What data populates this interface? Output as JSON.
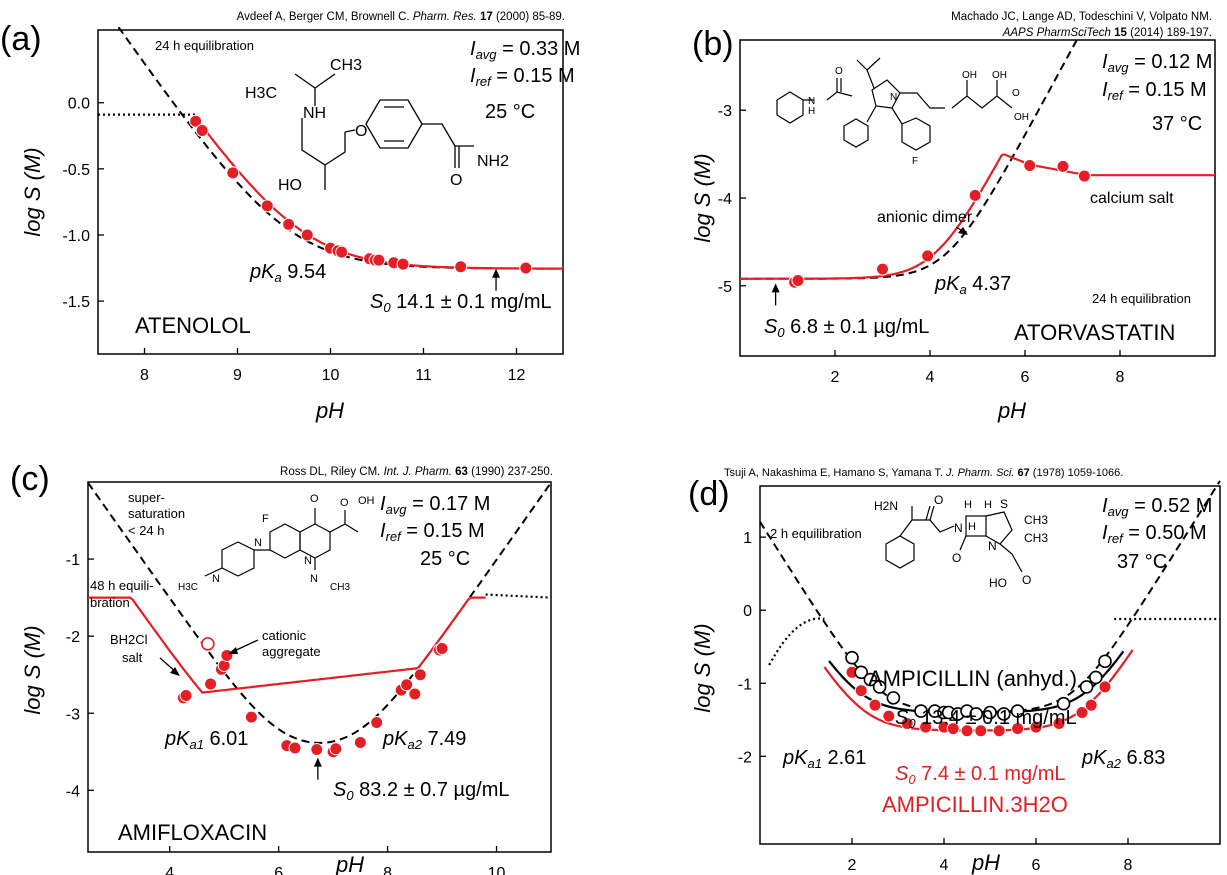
{
  "colors": {
    "model": "#e31e24",
    "accent": "#000000",
    "open_marker": "#ffffff"
  },
  "chart_data": [
    {
      "type": "scatter",
      "panel_label": "(a)",
      "reference": {
        "authors": "Avdeef A, Berger CM, Brownell C.",
        "journal": "Pharm. Res.",
        "volume": "17",
        "pages": "(2000) 85-89."
      },
      "compound": "ATENOLOL",
      "xlabel": "pH",
      "ylabel": "log S (M)",
      "xlim": [
        7.5,
        12.5
      ],
      "ylim": [
        -1.9,
        0.55
      ],
      "xticks": [
        8,
        9,
        10,
        11,
        12
      ],
      "yticks": [
        0.0,
        -0.5,
        -1.0,
        -1.5
      ],
      "ytick_labels": [
        "0.0",
        "-0.5",
        "-1.0",
        "-1.5"
      ],
      "annotations": {
        "equilibration": "24 h equilibration",
        "I_avg": "0.33 M",
        "I_ref": "0.15 M",
        "temperature": "25 °C",
        "pKa": "9.54",
        "S0": "14.1 ± 0.1 mg/mL"
      },
      "structure_labels": [
        "H3C",
        "CH3",
        "NH",
        "HO",
        "O",
        "O",
        "NH2"
      ],
      "points": {
        "x": [
          8.55,
          8.62,
          8.95,
          9.32,
          9.55,
          9.75,
          10.0,
          10.08,
          10.12,
          10.42,
          10.48,
          10.52,
          10.68,
          10.78,
          11.4,
          12.1
        ],
        "y": [
          -0.14,
          -0.21,
          -0.53,
          -0.78,
          -0.92,
          -1.0,
          -1.1,
          -1.12,
          -1.13,
          -1.18,
          -1.19,
          -1.19,
          -1.21,
          -1.22,
          -1.24,
          -1.25
        ]
      },
      "s0_arrow_x": 11.78
    },
    {
      "type": "scatter",
      "panel_label": "(b)",
      "reference": {
        "authors": "Machado JC, Lange AD, Todeschini V, Volpato NM.",
        "journal": "AAPS PharmSciTech",
        "volume": "15",
        "pages": "(2014) 189-197."
      },
      "compound": "ATORVASTATIN",
      "xlabel": "pH",
      "ylabel": "log S (M)",
      "xlim": [
        0,
        10
      ],
      "ylim": [
        -5.8,
        -2.2
      ],
      "xticks": [
        2,
        4,
        6,
        8
      ],
      "yticks": [
        -3,
        -4,
        -5
      ],
      "ytick_labels": [
        "-3",
        "-4",
        "-5"
      ],
      "annotations": {
        "equilibration": "24 h equilibration",
        "I_avg": "0.12 M",
        "I_ref": "0.15 M",
        "temperature": "37 °C",
        "pKa": "4.37",
        "S0": "6.8 ± 0.1 µg/mL",
        "dimer": "anionic dimer",
        "salt": "calcium salt"
      },
      "structure_labels": [
        "N",
        "H",
        "O",
        "N",
        "OH",
        "OH",
        "O",
        "OH",
        "F"
      ],
      "points": {
        "x": [
          1.15,
          1.22,
          3.0,
          3.95,
          4.95,
          6.1,
          6.8,
          7.25
        ],
        "y": [
          -4.96,
          -4.94,
          -4.81,
          -4.66,
          -3.97,
          -3.63,
          -3.64,
          -3.75
        ]
      },
      "s0_arrow_x": 0.75
    },
    {
      "type": "scatter",
      "panel_label": "(c)",
      "reference": {
        "authors": "Ross DL, Riley CM.",
        "journal": "Int. J. Pharm.",
        "volume": "63",
        "pages": "(1990) 237-250."
      },
      "compound": "AMIFLOXACIN",
      "xlabel": "pH",
      "ylabel": "log S (M)",
      "xlim": [
        2.5,
        11
      ],
      "ylim": [
        -4.8,
        0.0
      ],
      "xticks": [
        4,
        6,
        8,
        10
      ],
      "yticks": [
        -1,
        -2,
        -3,
        -4
      ],
      "ytick_labels": [
        "-1",
        "-2",
        "-3",
        "-4"
      ],
      "annotations": {
        "supersat_1": "super-",
        "supersat_2": "saturation",
        "supersat_3": "< 24 h",
        "equil_1": "48 h equili-",
        "equil_2": "bration",
        "salt_1": "BH2Cl",
        "salt_2": "salt",
        "aggregate_1": "cationic",
        "aggregate_2": "aggregate",
        "I_avg": "0.17 M",
        "I_ref": "0.15 M",
        "temperature": "25 °C",
        "pKa1": "6.01",
        "pKa2": "7.49",
        "S0": "83.2 ± 0.7 µg/mL"
      },
      "structure_labels": [
        "F",
        "O",
        "O",
        "OH",
        "N",
        "N",
        "N",
        "N",
        "H3C",
        "CH3"
      ],
      "points": {
        "x": [
          4.25,
          4.3,
          4.75,
          4.95,
          5.0,
          5.05,
          5.5,
          6.15,
          6.3,
          6.7,
          7.0,
          7.05,
          7.5,
          7.8,
          8.25,
          8.35,
          8.5,
          8.6,
          8.95,
          9.0
        ],
        "y": [
          -2.8,
          -2.77,
          -2.62,
          -2.43,
          -2.38,
          -2.25,
          -3.05,
          -3.42,
          -3.45,
          -3.47,
          -3.5,
          -3.46,
          -3.38,
          -3.12,
          -2.7,
          -2.63,
          -2.75,
          -2.5,
          -2.18,
          -2.16
        ]
      },
      "open_points": {
        "x": [
          4.7
        ],
        "y": [
          -2.1
        ]
      },
      "s0_arrow_x": 6.72
    },
    {
      "type": "scatter",
      "panel_label": "(d)",
      "reference": {
        "authors": "Tsuji A, Nakashima E, Hamano S, Yamana T.",
        "journal": "J. Pharm. Sci.",
        "volume": "67",
        "pages": "(1978) 1059-1066."
      },
      "compound_1": "AMPICILLIN (anhyd.)",
      "compound_2": "AMPICILLIN.3H2O",
      "xlabel": "pH",
      "ylabel": "log S (M)",
      "xlim": [
        0,
        10
      ],
      "ylim": [
        -3.2,
        1.7
      ],
      "xticks": [
        2,
        4,
        6,
        8
      ],
      "yticks": [
        1,
        0,
        -1,
        -2
      ],
      "ytick_labels": [
        "1",
        "0",
        "-1",
        "-2"
      ],
      "annotations": {
        "equilibration": "2 h equilibration",
        "I_avg": "0.52 M",
        "I_ref": "0.50 M",
        "temperature": "37 °C",
        "pKa1": "2.61",
        "pKa2": "6.83",
        "S0_anhyd": "13.4 ± 0.1 mg/mL",
        "S0_hydrate": "7.4 ± 0.1 mg/mL"
      },
      "structure_labels": [
        "H2N",
        "O",
        "N",
        "H",
        "H",
        "H",
        "S",
        "CH3",
        "CH3",
        "N",
        "O",
        "HO",
        "O"
      ],
      "series": [
        {
          "name": "AMPICILLIN (anhyd.)",
          "marker": "open",
          "x": [
            2.0,
            2.2,
            2.4,
            2.6,
            2.9,
            3.5,
            3.8,
            4.0,
            4.1,
            4.3,
            4.5,
            4.7,
            5.0,
            5.3,
            5.6,
            6.6,
            7.1,
            7.3,
            7.5
          ],
          "y": [
            -0.65,
            -0.85,
            -0.95,
            -1.05,
            -1.2,
            -1.38,
            -1.38,
            -1.4,
            -1.4,
            -1.42,
            -1.38,
            -1.42,
            -1.4,
            -1.42,
            -1.38,
            -1.28,
            -1.05,
            -0.92,
            -0.7
          ]
        },
        {
          "name": "AMPICILLIN.3H2O",
          "marker": "filled",
          "x": [
            2.0,
            2.2,
            2.5,
            2.8,
            3.2,
            3.6,
            4.0,
            4.2,
            4.5,
            4.8,
            5.2,
            5.6,
            6.0,
            6.5,
            7.0,
            7.2,
            7.5
          ],
          "y": [
            -0.85,
            -1.1,
            -1.3,
            -1.45,
            -1.55,
            -1.6,
            -1.6,
            -1.62,
            -1.65,
            -1.65,
            -1.65,
            -1.62,
            -1.6,
            -1.55,
            -1.4,
            -1.3,
            -1.05
          ]
        }
      ]
    }
  ]
}
